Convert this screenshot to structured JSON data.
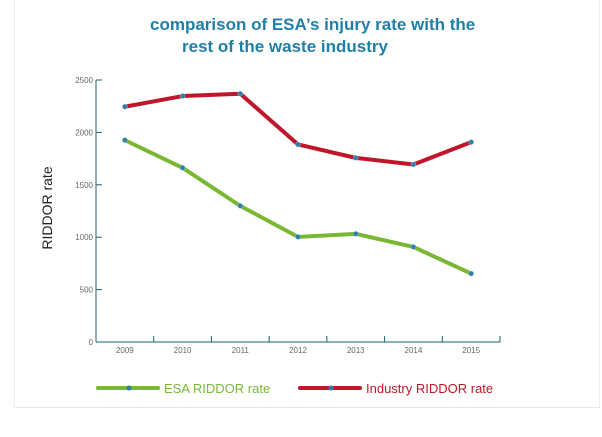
{
  "chart_data": {
    "type": "line",
    "title": "comparison of ESA's injury rate with the rest of the waste industry",
    "title_lines": [
      "comparison of ESA’s injury rate with the",
      "rest of the waste industry"
    ],
    "xlabel": "",
    "ylabel": "RIDDOR rate",
    "categories": [
      "2009",
      "2010",
      "2011",
      "2012",
      "2013",
      "2014",
      "2015"
    ],
    "yticks": [
      0,
      500,
      1000,
      1500,
      2000,
      2500
    ],
    "ylim": [
      0,
      2500
    ],
    "grid": false,
    "legend_placement": "bottom",
    "series": [
      {
        "name": "ESA RIDDOR rate",
        "color": "#7ab834",
        "values": [
          1926,
          1662,
          1299,
          1003,
          1032,
          907,
          653
        ]
      },
      {
        "name": "Industry RIDDOR rate",
        "color": "#c0152a",
        "values": [
          2245,
          2347,
          2369,
          1885,
          1757,
          1694,
          1907
        ]
      }
    ],
    "marker_color": "#2f7fa6",
    "axis_color": "#1e5f6e"
  }
}
